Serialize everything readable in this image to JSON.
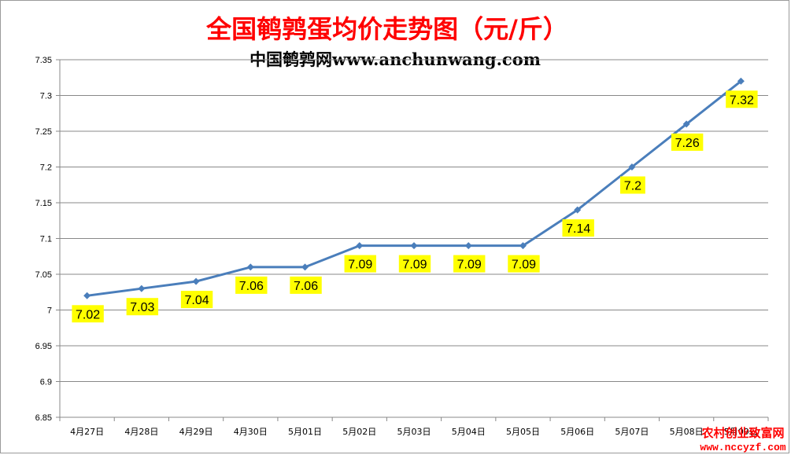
{
  "chart_data": {
    "type": "line",
    "title": "全国鹌鹑蛋均价走势图（元/斤）",
    "subtitle": "中国鹌鹑网www.anchunwang.com",
    "categories": [
      "4月27日",
      "4月28日",
      "4月29日",
      "4月30日",
      "5月01日",
      "5月02日",
      "5月03日",
      "5月04日",
      "5月05日",
      "5月06日",
      "5月07日",
      "5月08日",
      "5月09日"
    ],
    "series": [
      {
        "values": [
          7.02,
          7.03,
          7.04,
          7.06,
          7.06,
          7.09,
          7.09,
          7.09,
          7.09,
          7.14,
          7.2,
          7.26,
          7.32
        ]
      }
    ],
    "data_labels": [
      "7.02",
      "7.03",
      "7.04",
      "7.06",
      "7.06",
      "7.09",
      "7.09",
      "7.09",
      "7.09",
      "7.14",
      "7.2",
      "7.26",
      "7.32"
    ],
    "ylim": [
      6.85,
      7.35
    ],
    "yticks": [
      "6.85",
      "6.9",
      "6.95",
      "7",
      "7.05",
      "7.1",
      "7.15",
      "7.2",
      "7.25",
      "7.3",
      "7.35"
    ],
    "xlabel": "",
    "ylabel": "",
    "grid": true,
    "colors": {
      "title": "#ff0000",
      "line": "#4a7ebb",
      "label_bg": "#ffff00",
      "gridline": "#888888",
      "watermark": "#ff0000"
    }
  },
  "watermark": {
    "line1": "农村创业致富网",
    "line2": "www.nccyzf.com"
  }
}
